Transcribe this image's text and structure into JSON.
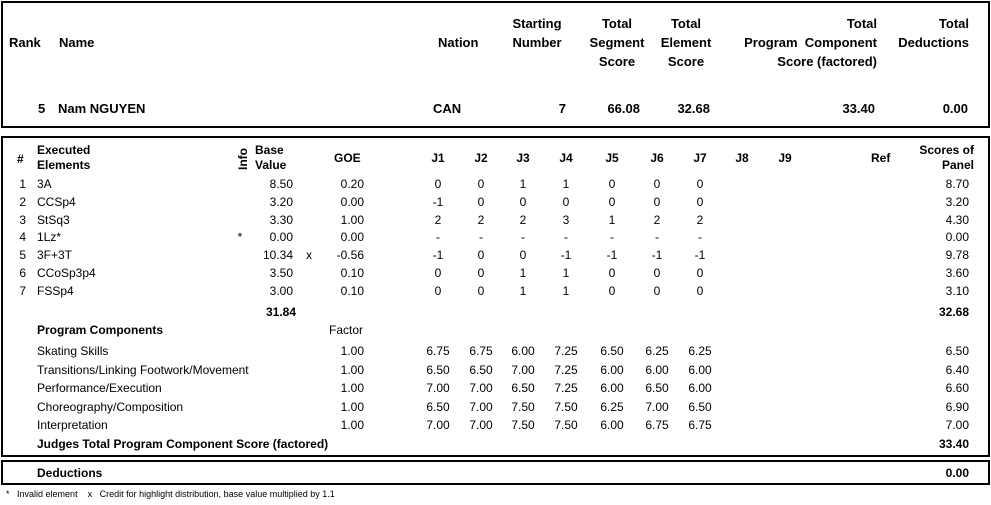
{
  "header": {
    "rank_label": "Rank",
    "name_label": "Name",
    "nation_label": "Nation",
    "starting_number_label": [
      "Starting",
      "Number"
    ],
    "tss_label": [
      "Total",
      "Segment",
      "Score"
    ],
    "tes_label": [
      "Total",
      "Element",
      "Score"
    ],
    "pcs_label": [
      "Total",
      "Program  Component",
      "Score (factored)"
    ],
    "ded_label": [
      "Total",
      "Deductions"
    ]
  },
  "skater": {
    "rank": "5",
    "name": "Nam NGUYEN",
    "nation": "CAN",
    "starting_number": "7",
    "tss": "66.08",
    "tes": "32.68",
    "pcs": "33.40",
    "deductions": "0.00"
  },
  "elements_header": {
    "num": "#",
    "executed": [
      "Executed",
      "Elements"
    ],
    "info": "Info",
    "base": [
      "Base",
      "Value"
    ],
    "goe": "GOE",
    "judges": [
      "J1",
      "J2",
      "J3",
      "J4",
      "J5",
      "J6",
      "J7",
      "J8",
      "J9"
    ],
    "ref": "Ref",
    "scores": [
      "Scores of",
      "Panel"
    ]
  },
  "elements": [
    {
      "num": "1",
      "name": "3A",
      "info": "",
      "base": "8.50",
      "x": "",
      "goe": "0.20",
      "j": [
        "0",
        "0",
        "1",
        "1",
        "0",
        "0",
        "0"
      ],
      "score": "8.70"
    },
    {
      "num": "2",
      "name": "CCSp4",
      "info": "",
      "base": "3.20",
      "x": "",
      "goe": "0.00",
      "j": [
        "-1",
        "0",
        "0",
        "0",
        "0",
        "0",
        "0"
      ],
      "score": "3.20"
    },
    {
      "num": "3",
      "name": "StSq3",
      "info": "",
      "base": "3.30",
      "x": "",
      "goe": "1.00",
      "j": [
        "2",
        "2",
        "2",
        "3",
        "1",
        "2",
        "2"
      ],
      "score": "4.30"
    },
    {
      "num": "4",
      "name": "1Lz*",
      "info": "*",
      "base": "0.00",
      "x": "",
      "goe": "0.00",
      "j": [
        "-",
        "-",
        "-",
        "-",
        "-",
        "-",
        "-"
      ],
      "score": "0.00"
    },
    {
      "num": "5",
      "name": "3F+3T",
      "info": "",
      "base": "10.34",
      "x": "x",
      "goe": "-0.56",
      "j": [
        "-1",
        "0",
        "0",
        "-1",
        "-1",
        "-1",
        "-1"
      ],
      "score": "9.78"
    },
    {
      "num": "6",
      "name": "CCoSp3p4",
      "info": "",
      "base": "3.50",
      "x": "",
      "goe": "0.10",
      "j": [
        "0",
        "0",
        "1",
        "1",
        "0",
        "0",
        "0"
      ],
      "score": "3.60"
    },
    {
      "num": "7",
      "name": "FSSp4",
      "info": "",
      "base": "3.00",
      "x": "",
      "goe": "0.10",
      "j": [
        "0",
        "0",
        "1",
        "1",
        "0",
        "0",
        "0"
      ],
      "score": "3.10"
    }
  ],
  "elements_totals": {
    "base": "31.84",
    "score": "32.68"
  },
  "components_header": {
    "title": "Program Components",
    "factor": "Factor"
  },
  "components": [
    {
      "name": "Skating Skills",
      "factor": "1.00",
      "j": [
        "6.75",
        "6.75",
        "6.00",
        "7.25",
        "6.50",
        "6.25",
        "6.25"
      ],
      "score": "6.50"
    },
    {
      "name": "Transitions/Linking Footwork/Movement",
      "factor": "1.00",
      "j": [
        "6.50",
        "6.50",
        "7.00",
        "7.25",
        "6.00",
        "6.00",
        "6.00"
      ],
      "score": "6.40"
    },
    {
      "name": "Performance/Execution",
      "factor": "1.00",
      "j": [
        "7.00",
        "7.00",
        "6.50",
        "7.25",
        "6.00",
        "6.50",
        "6.00"
      ],
      "score": "6.60"
    },
    {
      "name": "Choreography/Composition",
      "factor": "1.00",
      "j": [
        "6.50",
        "7.00",
        "7.50",
        "7.50",
        "6.25",
        "7.00",
        "6.50"
      ],
      "score": "6.90"
    },
    {
      "name": "Interpretation",
      "factor": "1.00",
      "j": [
        "7.00",
        "7.00",
        "7.50",
        "7.50",
        "6.00",
        "6.75",
        "6.75"
      ],
      "score": "7.00"
    }
  ],
  "components_total": {
    "label": "Judges Total Program Component Score (factored)",
    "score": "33.40"
  },
  "deductions": {
    "label": "Deductions",
    "score": "0.00"
  },
  "footnote": {
    "star": "*",
    "star_text": "Invalid element",
    "x": "x",
    "x_text": "Credit for highlight distribution, base value multiplied by 1.1"
  }
}
